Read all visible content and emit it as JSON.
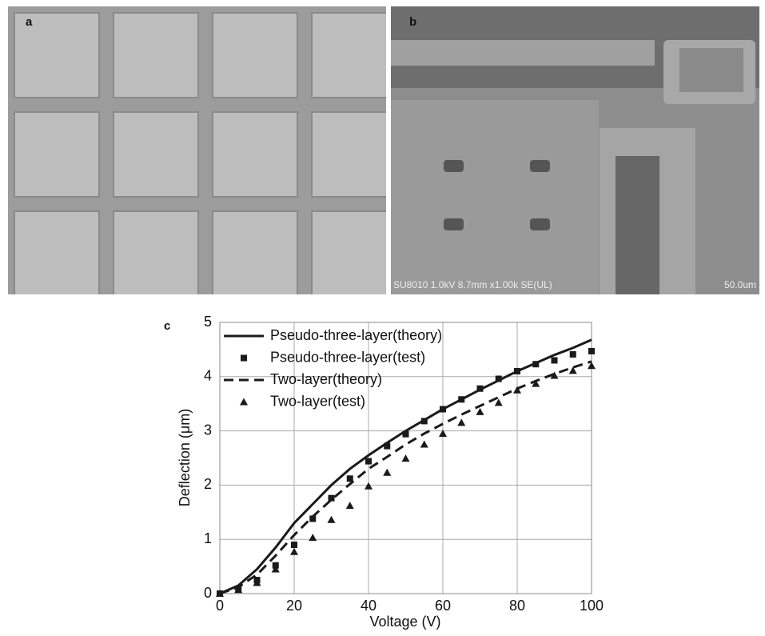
{
  "panels": {
    "a": {
      "label": "a"
    },
    "b": {
      "label": "b",
      "info": "SU8010 1.0kV 8.7mm x1.00k SE(UL)",
      "scale": "50.0um"
    }
  },
  "chart_data": {
    "type": "line",
    "label": "c",
    "xlabel": "Voltage (V)",
    "ylabel": "Deflection (μm)",
    "x": [
      0,
      5,
      10,
      15,
      20,
      25,
      30,
      35,
      40,
      45,
      50,
      55,
      60,
      65,
      70,
      75,
      80,
      85,
      90,
      95,
      100
    ],
    "xlim": [
      0,
      100
    ],
    "xticks": [
      0,
      20,
      40,
      60,
      80,
      100
    ],
    "ylim": [
      0,
      5
    ],
    "yticks": [
      0,
      1,
      2,
      3,
      4,
      5
    ],
    "grid": true,
    "legend": "upper left",
    "series": [
      {
        "name": "Pseudo-three-layer(theory)",
        "color": "#1a1a1a",
        "style": "solid",
        "values": [
          0,
          0.15,
          0.45,
          0.85,
          1.3,
          1.65,
          2.0,
          2.3,
          2.55,
          2.78,
          3.0,
          3.2,
          3.4,
          3.58,
          3.76,
          3.93,
          4.1,
          4.25,
          4.4,
          4.53,
          4.68
        ]
      },
      {
        "name": "Pseudo-three-layer(test)",
        "color": "#1a1a1a",
        "marker": "square",
        "values": [
          0,
          0.08,
          0.25,
          0.52,
          0.9,
          1.38,
          1.76,
          2.12,
          2.44,
          2.72,
          2.94,
          3.18,
          3.4,
          3.58,
          3.78,
          3.96,
          4.1,
          4.23,
          4.3,
          4.41,
          4.47
        ]
      },
      {
        "name": "Two-layer(theory)",
        "color": "#1a1a1a",
        "style": "dashed",
        "values": [
          0,
          0.12,
          0.35,
          0.7,
          1.08,
          1.42,
          1.73,
          2.02,
          2.3,
          2.52,
          2.75,
          2.95,
          3.13,
          3.3,
          3.46,
          3.62,
          3.78,
          3.92,
          4.05,
          4.17,
          4.28
        ]
      },
      {
        "name": "Two-layer(test)",
        "color": "#1a1a1a",
        "marker": "triangle",
        "values": [
          0,
          0.07,
          0.2,
          0.45,
          0.77,
          1.03,
          1.36,
          1.62,
          1.98,
          2.23,
          2.49,
          2.75,
          2.95,
          3.15,
          3.35,
          3.52,
          3.75,
          3.87,
          4.02,
          4.11,
          4.2
        ]
      }
    ]
  }
}
